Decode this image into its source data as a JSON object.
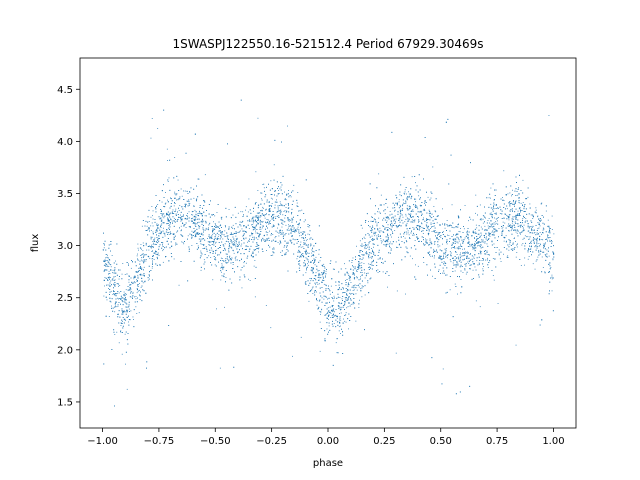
{
  "chart_data": {
    "type": "scatter",
    "title": "1SWASPJ122550.16-521512.4 Period 67929.30469s",
    "xlabel": "phase",
    "ylabel": "flux",
    "xlim": [
      -1.1,
      1.1
    ],
    "ylim": [
      1.25,
      4.8
    ],
    "grid": false,
    "legend": "none",
    "point_color": "#1f77b4",
    "x_ticks": [
      -1.0,
      -0.75,
      -0.5,
      -0.25,
      0.0,
      0.25,
      0.5,
      0.75,
      1.0
    ],
    "x_tick_labels": [
      "−1.00",
      "−0.75",
      "−0.50",
      "−0.25",
      "0.00",
      "0.25",
      "0.50",
      "0.75",
      "1.00"
    ],
    "y_ticks": [
      1.5,
      2.0,
      2.5,
      3.0,
      3.5,
      4.0,
      4.5
    ],
    "y_tick_labels": [
      "1.5",
      "2.0",
      "2.5",
      "3.0",
      "3.5",
      "4.0",
      "4.5"
    ],
    "series": [
      {
        "x": [
          -1.0,
          -0.95,
          -0.9,
          -0.85,
          -0.8,
          -0.75,
          -0.7,
          -0.65,
          -0.6,
          -0.55,
          -0.5,
          -0.45,
          -0.4,
          -0.35,
          -0.3,
          -0.25,
          -0.2,
          -0.15,
          -0.1,
          -0.05,
          0.0,
          0.05,
          0.1,
          0.15,
          0.2,
          0.25,
          0.3,
          0.35,
          0.4,
          0.45,
          0.5,
          0.55,
          0.6,
          0.65,
          0.7,
          0.75,
          0.8,
          0.85,
          0.9,
          0.95,
          1.0
        ],
        "y": [
          2.85,
          2.55,
          2.4,
          2.65,
          2.95,
          3.15,
          3.25,
          3.3,
          3.25,
          3.15,
          3.0,
          2.95,
          3.0,
          3.1,
          3.2,
          3.25,
          3.25,
          3.15,
          2.95,
          2.7,
          2.45,
          2.4,
          2.55,
          2.85,
          3.05,
          3.15,
          3.25,
          3.3,
          3.25,
          3.15,
          3.0,
          2.95,
          2.95,
          3.0,
          3.1,
          3.2,
          3.25,
          3.25,
          3.15,
          3.05,
          2.9
        ],
        "scatter_sd": 0.17
      }
    ]
  }
}
